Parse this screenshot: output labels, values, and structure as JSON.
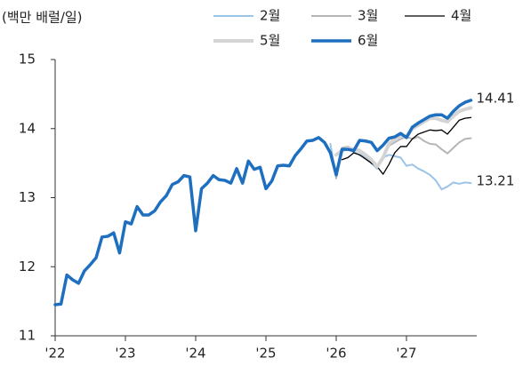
{
  "chart_data": {
    "type": "line",
    "y_label": "(백만 배럴/일)",
    "x": [
      2022,
      2022.083,
      2022.167,
      2022.25,
      2022.333,
      2022.417,
      2022.5,
      2022.583,
      2022.667,
      2022.75,
      2022.833,
      2022.917,
      2023,
      2023.083,
      2023.167,
      2023.25,
      2023.333,
      2023.417,
      2023.5,
      2023.583,
      2023.667,
      2023.75,
      2023.833,
      2023.917,
      2024,
      2024.083,
      2024.167,
      2024.25,
      2024.333,
      2024.417,
      2024.5,
      2024.583,
      2024.667,
      2024.75,
      2024.833,
      2024.917,
      2025,
      2025.083,
      2025.167,
      2025.25,
      2025.333,
      2025.417,
      2025.5,
      2025.583,
      2025.667,
      2025.75,
      2025.833,
      2025.917,
      2026,
      2026.083,
      2026.167,
      2026.25,
      2026.333,
      2026.417,
      2026.5,
      2026.583,
      2026.667,
      2026.75,
      2026.833,
      2026.917,
      2027,
      2027.083,
      2027.167,
      2027.25,
      2027.333,
      2027.417,
      2027.5,
      2027.583,
      2027.667,
      2027.75,
      2027.833,
      2027.917
    ],
    "series": [
      {
        "name": "2월",
        "color": "#9cc3e8",
        "line_width": 2,
        "values": [
          null,
          null,
          null,
          null,
          null,
          null,
          null,
          null,
          null,
          null,
          null,
          null,
          null,
          null,
          null,
          null,
          null,
          null,
          null,
          null,
          null,
          null,
          null,
          null,
          null,
          null,
          null,
          null,
          null,
          null,
          null,
          null,
          null,
          null,
          null,
          null,
          null,
          null,
          null,
          null,
          null,
          null,
          null,
          null,
          null,
          null,
          null,
          13.78,
          13.28,
          13.7,
          13.72,
          13.66,
          13.62,
          13.58,
          13.5,
          13.42,
          13.58,
          13.62,
          13.6,
          13.58,
          13.46,
          13.48,
          13.42,
          13.38,
          13.33,
          13.25,
          13.12,
          13.16,
          13.22,
          13.2,
          13.22,
          13.21
        ]
      },
      {
        "name": "3월",
        "color": "#b5b5b5",
        "line_width": 2,
        "values": [
          null,
          null,
          null,
          null,
          null,
          null,
          null,
          null,
          null,
          null,
          null,
          null,
          null,
          null,
          null,
          null,
          null,
          null,
          null,
          null,
          null,
          null,
          null,
          null,
          null,
          null,
          null,
          null,
          null,
          null,
          null,
          null,
          null,
          null,
          null,
          null,
          null,
          null,
          null,
          null,
          null,
          null,
          null,
          null,
          null,
          null,
          null,
          null,
          13.28,
          13.72,
          13.74,
          13.7,
          13.66,
          13.6,
          13.52,
          13.45,
          13.6,
          13.75,
          13.8,
          13.85,
          13.88,
          13.85,
          13.88,
          13.82,
          13.78,
          13.77,
          13.7,
          13.64,
          13.72,
          13.8,
          13.85,
          13.86
        ]
      },
      {
        "name": "4월",
        "color": "#000000",
        "line_width": 1.3,
        "values": [
          null,
          null,
          null,
          null,
          null,
          null,
          null,
          null,
          null,
          null,
          null,
          null,
          null,
          null,
          null,
          null,
          null,
          null,
          null,
          null,
          null,
          null,
          null,
          null,
          null,
          null,
          null,
          null,
          null,
          null,
          null,
          null,
          null,
          null,
          null,
          null,
          null,
          null,
          null,
          null,
          null,
          null,
          null,
          null,
          null,
          null,
          null,
          null,
          null,
          13.55,
          13.58,
          13.65,
          13.62,
          13.56,
          13.5,
          13.45,
          13.34,
          13.48,
          13.65,
          13.74,
          13.74,
          13.85,
          13.92,
          13.95,
          13.98,
          13.97,
          13.98,
          13.92,
          14.02,
          14.12,
          14.15,
          14.16
        ]
      },
      {
        "name": "5월",
        "color": "#d4d4d4",
        "line_width": 4,
        "values": [
          null,
          null,
          null,
          null,
          null,
          null,
          null,
          null,
          null,
          null,
          null,
          null,
          null,
          null,
          null,
          null,
          null,
          null,
          null,
          null,
          null,
          null,
          null,
          null,
          null,
          null,
          null,
          null,
          null,
          null,
          null,
          null,
          null,
          null,
          null,
          null,
          null,
          null,
          null,
          null,
          null,
          null,
          null,
          null,
          null,
          null,
          null,
          null,
          13.62,
          13.68,
          13.72,
          13.7,
          13.68,
          13.62,
          13.55,
          13.45,
          13.58,
          13.78,
          13.85,
          13.9,
          13.88,
          14.0,
          14.05,
          14.1,
          14.15,
          14.15,
          14.12,
          14.1,
          14.18,
          14.25,
          14.28,
          14.3
        ]
      },
      {
        "name": "6월",
        "color": "#1f6fc0",
        "line_width": 3.5,
        "values": [
          11.45,
          11.46,
          11.88,
          11.81,
          11.76,
          11.94,
          12.03,
          12.13,
          12.43,
          12.44,
          12.49,
          12.2,
          12.65,
          12.62,
          12.87,
          12.75,
          12.75,
          12.81,
          12.94,
          13.03,
          13.19,
          13.23,
          13.32,
          13.3,
          12.52,
          13.13,
          13.21,
          13.32,
          13.26,
          13.25,
          13.21,
          13.42,
          13.21,
          13.53,
          13.41,
          13.44,
          13.13,
          13.24,
          13.46,
          13.47,
          13.46,
          13.61,
          13.71,
          13.82,
          13.83,
          13.87,
          13.8,
          13.65,
          13.33,
          13.7,
          13.7,
          13.68,
          13.83,
          13.82,
          13.8,
          13.68,
          13.76,
          13.86,
          13.88,
          13.93,
          13.87,
          14.02,
          14.08,
          14.13,
          14.18,
          14.2,
          14.2,
          14.15,
          14.25,
          14.33,
          14.38,
          14.41
        ]
      }
    ],
    "end_labels": [
      4,
      0
    ],
    "xlim": [
      2022,
      2028
    ],
    "xticks": [
      {
        "value": 2022,
        "label": "'22"
      },
      {
        "value": 2023,
        "label": "'23"
      },
      {
        "value": 2024,
        "label": "'24"
      },
      {
        "value": 2025,
        "label": "'25"
      },
      {
        "value": 2026,
        "label": "'26"
      },
      {
        "value": 2027,
        "label": "'27"
      }
    ],
    "ylim": [
      11,
      15
    ],
    "yticks": [
      11,
      12,
      13,
      14,
      15
    ],
    "grid": false,
    "legend": "top"
  }
}
